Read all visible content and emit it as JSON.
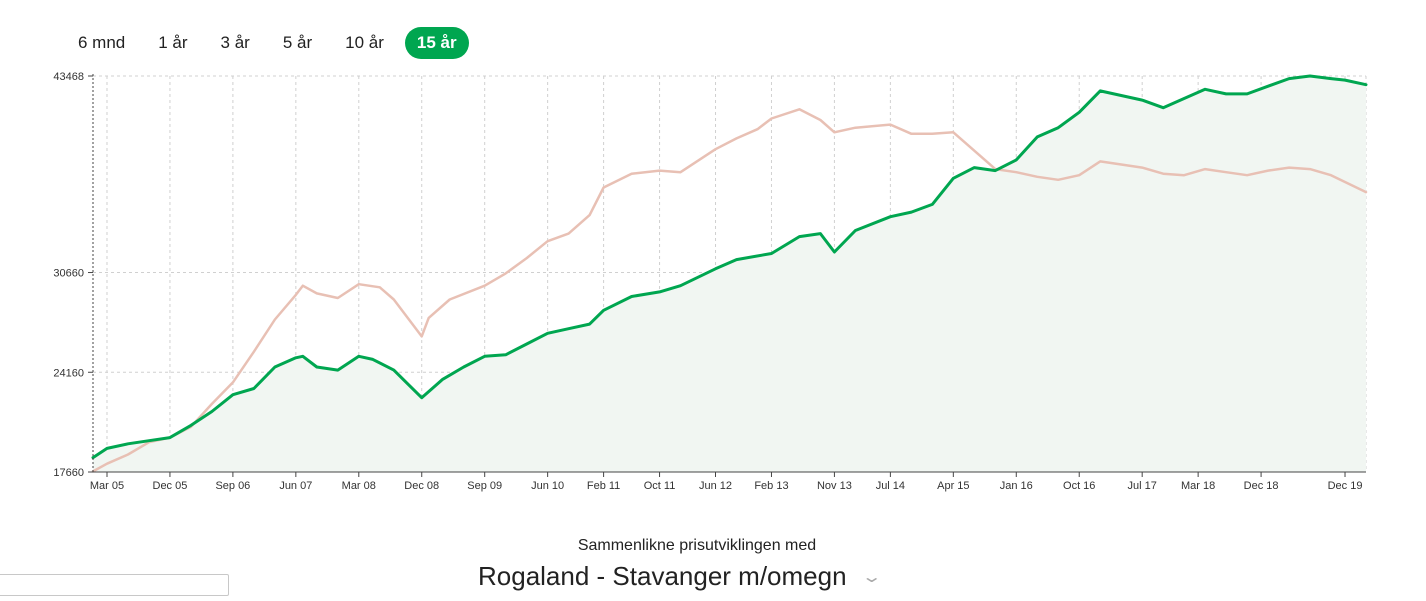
{
  "range_tabs": [
    {
      "label": "6 mnd",
      "active": false
    },
    {
      "label": "1 år",
      "active": false
    },
    {
      "label": "3 år",
      "active": false
    },
    {
      "label": "5 år",
      "active": false
    },
    {
      "label": "10 år",
      "active": false
    },
    {
      "label": "15 år",
      "active": true
    }
  ],
  "compare": {
    "label": "Sammenlikne prisutviklingen med",
    "selected_region": "Rogaland - Stavanger m/omegn"
  },
  "colors": {
    "accent": "#00a650",
    "comparison_line": "#e8c0b4",
    "area_fill": "#f1f6f2",
    "grid": "#d0d0d0"
  },
  "chart_data": {
    "type": "area",
    "x_tick_labels": [
      "Mar 05",
      "Dec 05",
      "Sep 06",
      "Jun 07",
      "Mar 08",
      "Dec 08",
      "Sep 09",
      "Jun 10",
      "Feb 11",
      "Oct 11",
      "Jun 12",
      "Feb 13",
      "Nov 13",
      "Jul 14",
      "Apr 15",
      "Jan 16",
      "Oct 16",
      "Jul 17",
      "Mar 18",
      "Dec 18",
      "Dec 19"
    ],
    "y_ticks": [
      17660,
      24160,
      30660,
      43468
    ],
    "ylim": [
      17660,
      43468
    ],
    "grid": true,
    "series": [
      {
        "color": "#00a650",
        "filled": true,
        "x": [
          "Jan 05",
          "Mar 05",
          "Jun 05",
          "Sep 05",
          "Dec 05",
          "Mar 06",
          "Jun 06",
          "Sep 06",
          "Dec 06",
          "Mar 07",
          "Jun 07",
          "Jul 07",
          "Sep 07",
          "Dec 07",
          "Mar 08",
          "May 08",
          "Aug 08",
          "Dec 08",
          "Mar 09",
          "Jun 09",
          "Sep 09",
          "Dec 09",
          "Mar 10",
          "Jun 10",
          "Sep 10",
          "Dec 10",
          "Feb 11",
          "Jun 11",
          "Oct 11",
          "Jan 12",
          "Jun 12",
          "Sep 12",
          "Feb 13",
          "Jun 13",
          "Sep 13",
          "Nov 13",
          "Feb 14",
          "Jul 14",
          "Oct 14",
          "Jan 15",
          "Apr 15",
          "Jul 15",
          "Oct 15",
          "Jan 16",
          "Apr 16",
          "Jul 16",
          "Oct 16",
          "Jan 17",
          "Jul 17",
          "Oct 17",
          "Jan 18",
          "Apr 18",
          "Jul 18",
          "Oct 18",
          "Jan 19",
          "Apr 19",
          "Jul 19",
          "Oct 19",
          "Dec 19",
          "Mar 20"
        ],
        "values": [
          18600,
          19200,
          19500,
          19700,
          19900,
          20700,
          21600,
          22700,
          23100,
          24500,
          25100,
          25200,
          24500,
          24300,
          25200,
          25000,
          24300,
          22500,
          23700,
          24500,
          25200,
          25300,
          26000,
          26700,
          27000,
          27300,
          28200,
          29100,
          29400,
          29800,
          30900,
          31500,
          31900,
          33000,
          33200,
          32000,
          33400,
          34300,
          34600,
          35100,
          36800,
          37500,
          37300,
          38000,
          39500,
          40100,
          41100,
          42500,
          41900,
          41400,
          42000,
          42600,
          42300,
          42300,
          42800,
          43300,
          43468,
          43300,
          43200,
          42900
        ]
      },
      {
        "color": "#e8c0b4",
        "filled": false,
        "x": [
          "Jan 05",
          "Mar 05",
          "Jun 05",
          "Sep 05",
          "Dec 05",
          "Mar 06",
          "Jun 06",
          "Sep 06",
          "Dec 06",
          "Mar 07",
          "Jun 07",
          "Jul 07",
          "Sep 07",
          "Dec 07",
          "Mar 08",
          "Jun 08",
          "Aug 08",
          "Dec 08",
          "Jan 09",
          "Apr 09",
          "Sep 09",
          "Dec 09",
          "Mar 10",
          "Jun 10",
          "Sep 10",
          "Dec 10",
          "Feb 11",
          "Jun 11",
          "Oct 11",
          "Jan 12",
          "Jun 12",
          "Sep 12",
          "Dec 12",
          "Feb 13",
          "Jun 13",
          "Sep 13",
          "Nov 13",
          "Feb 14",
          "Jul 14",
          "Oct 14",
          "Jan 15",
          "Apr 15",
          "Jul 15",
          "Oct 15",
          "Jan 16",
          "Apr 16",
          "Jul 16",
          "Oct 16",
          "Jan 17",
          "Jul 17",
          "Oct 17",
          "Jan 18",
          "Apr 18",
          "Jul 18",
          "Oct 18",
          "Jan 19",
          "Apr 19",
          "Jul 19",
          "Oct 19",
          "Mar 20"
        ],
        "values": [
          17700,
          18200,
          18800,
          19600,
          19900,
          20600,
          22100,
          23500,
          25500,
          27600,
          29200,
          29800,
          29300,
          29000,
          29900,
          29700,
          28900,
          26500,
          27700,
          28900,
          29800,
          30600,
          31600,
          32700,
          33200,
          34400,
          36200,
          37100,
          37300,
          37200,
          38700,
          39400,
          40000,
          40700,
          41300,
          40600,
          39800,
          40100,
          40300,
          39700,
          39700,
          39800,
          38600,
          37400,
          37200,
          36900,
          36700,
          37000,
          37900,
          37500,
          37100,
          37000,
          37400,
          37200,
          37000,
          37300,
          37500,
          37400,
          37000,
          35900
        ]
      }
    ]
  }
}
